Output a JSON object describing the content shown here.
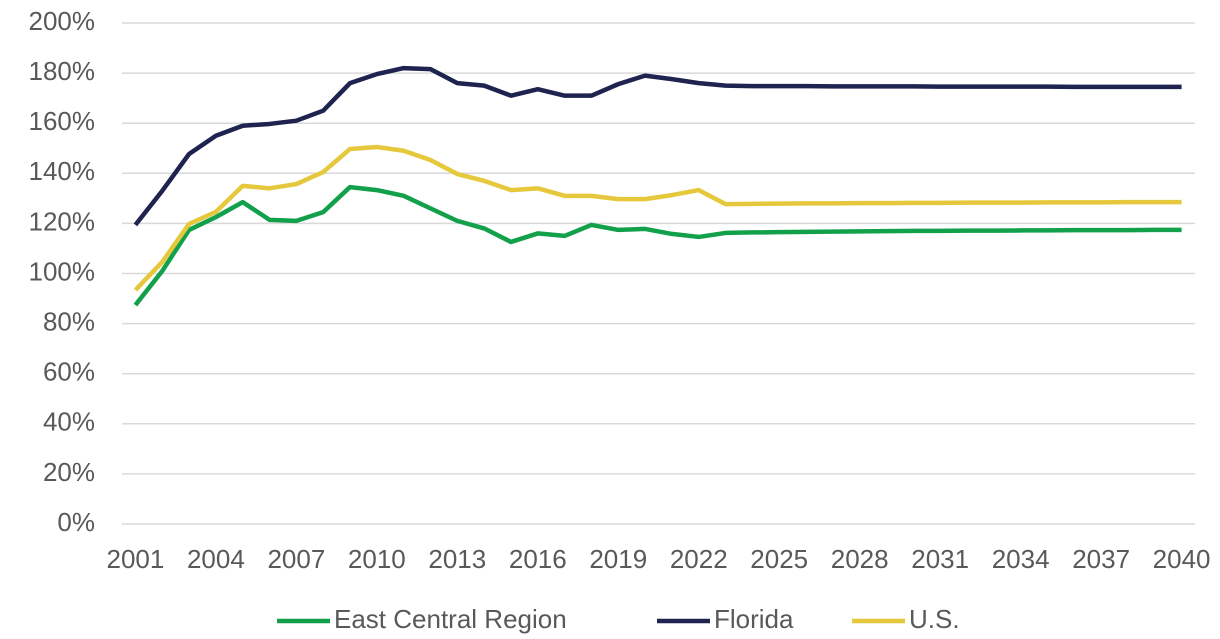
{
  "chart_data": {
    "type": "line",
    "x": [
      2001,
      2002,
      2003,
      2004,
      2005,
      2006,
      2007,
      2008,
      2009,
      2010,
      2011,
      2012,
      2013,
      2014,
      2015,
      2016,
      2017,
      2018,
      2019,
      2020,
      2021,
      2022,
      2023,
      2024,
      2025,
      2026,
      2027,
      2028,
      2029,
      2030,
      2031,
      2032,
      2033,
      2034,
      2035,
      2036,
      2037,
      2038,
      2039,
      2040
    ],
    "xlim": [
      2000.5,
      2040.5
    ],
    "xticks": [
      2001,
      2004,
      2007,
      2010,
      2013,
      2016,
      2019,
      2022,
      2025,
      2028,
      2031,
      2034,
      2037,
      2040
    ],
    "ylim": [
      0,
      200
    ],
    "yticks": [
      {
        "value": 0,
        "label": "0%"
      },
      {
        "value": 20,
        "label": "20%"
      },
      {
        "value": 40,
        "label": "40%"
      },
      {
        "value": 60,
        "label": "60%"
      },
      {
        "value": 80,
        "label": "80%"
      },
      {
        "value": 100,
        "label": "100%"
      },
      {
        "value": 120,
        "label": "120%"
      },
      {
        "value": 140,
        "label": "140%"
      },
      {
        "value": 160,
        "label": "160%"
      },
      {
        "value": 180,
        "label": "180%"
      },
      {
        "value": 200,
        "label": "200%"
      }
    ],
    "grid": true,
    "legend": "bottom",
    "series": [
      {
        "name": "East Central Region",
        "color": "#12a04a",
        "values": [
          87.4,
          101,
          117.4,
          122.5,
          128.5,
          121.4,
          121,
          124.5,
          134.5,
          133.3,
          131,
          126,
          121,
          118,
          112.6,
          116,
          115,
          119.4,
          117.4,
          117.8,
          115.8,
          114.6,
          116.2,
          116.4,
          116.5,
          116.6,
          116.7,
          116.8,
          116.9,
          117,
          117,
          117.1,
          117.1,
          117.2,
          117.2,
          117.3,
          117.3,
          117.3,
          117.4,
          117.4
        ]
      },
      {
        "name": "Florida",
        "color": "#1e2350",
        "values": [
          119.4,
          133,
          147.7,
          155,
          159,
          159.7,
          161,
          165,
          176,
          179.6,
          182,
          181.6,
          176,
          175,
          171,
          173.6,
          171,
          171,
          175.6,
          179,
          177.6,
          176,
          175,
          174.8,
          174.8,
          174.8,
          174.7,
          174.7,
          174.7,
          174.7,
          174.6,
          174.6,
          174.6,
          174.6,
          174.6,
          174.5,
          174.5,
          174.5,
          174.5,
          174.5
        ]
      },
      {
        "name": "U.S.",
        "color": "#e6c83c",
        "values": [
          93.4,
          104.6,
          119.8,
          124.6,
          135,
          134,
          135.7,
          140.5,
          149.7,
          150.5,
          149,
          145.3,
          139.7,
          137,
          133.3,
          134,
          131,
          131,
          129.7,
          129.7,
          131.3,
          133.3,
          127.7,
          127.8,
          127.9,
          128,
          128,
          128.1,
          128.1,
          128.2,
          128.2,
          128.3,
          128.3,
          128.3,
          128.4,
          128.4,
          128.4,
          128.5,
          128.5,
          128.5
        ]
      }
    ]
  }
}
